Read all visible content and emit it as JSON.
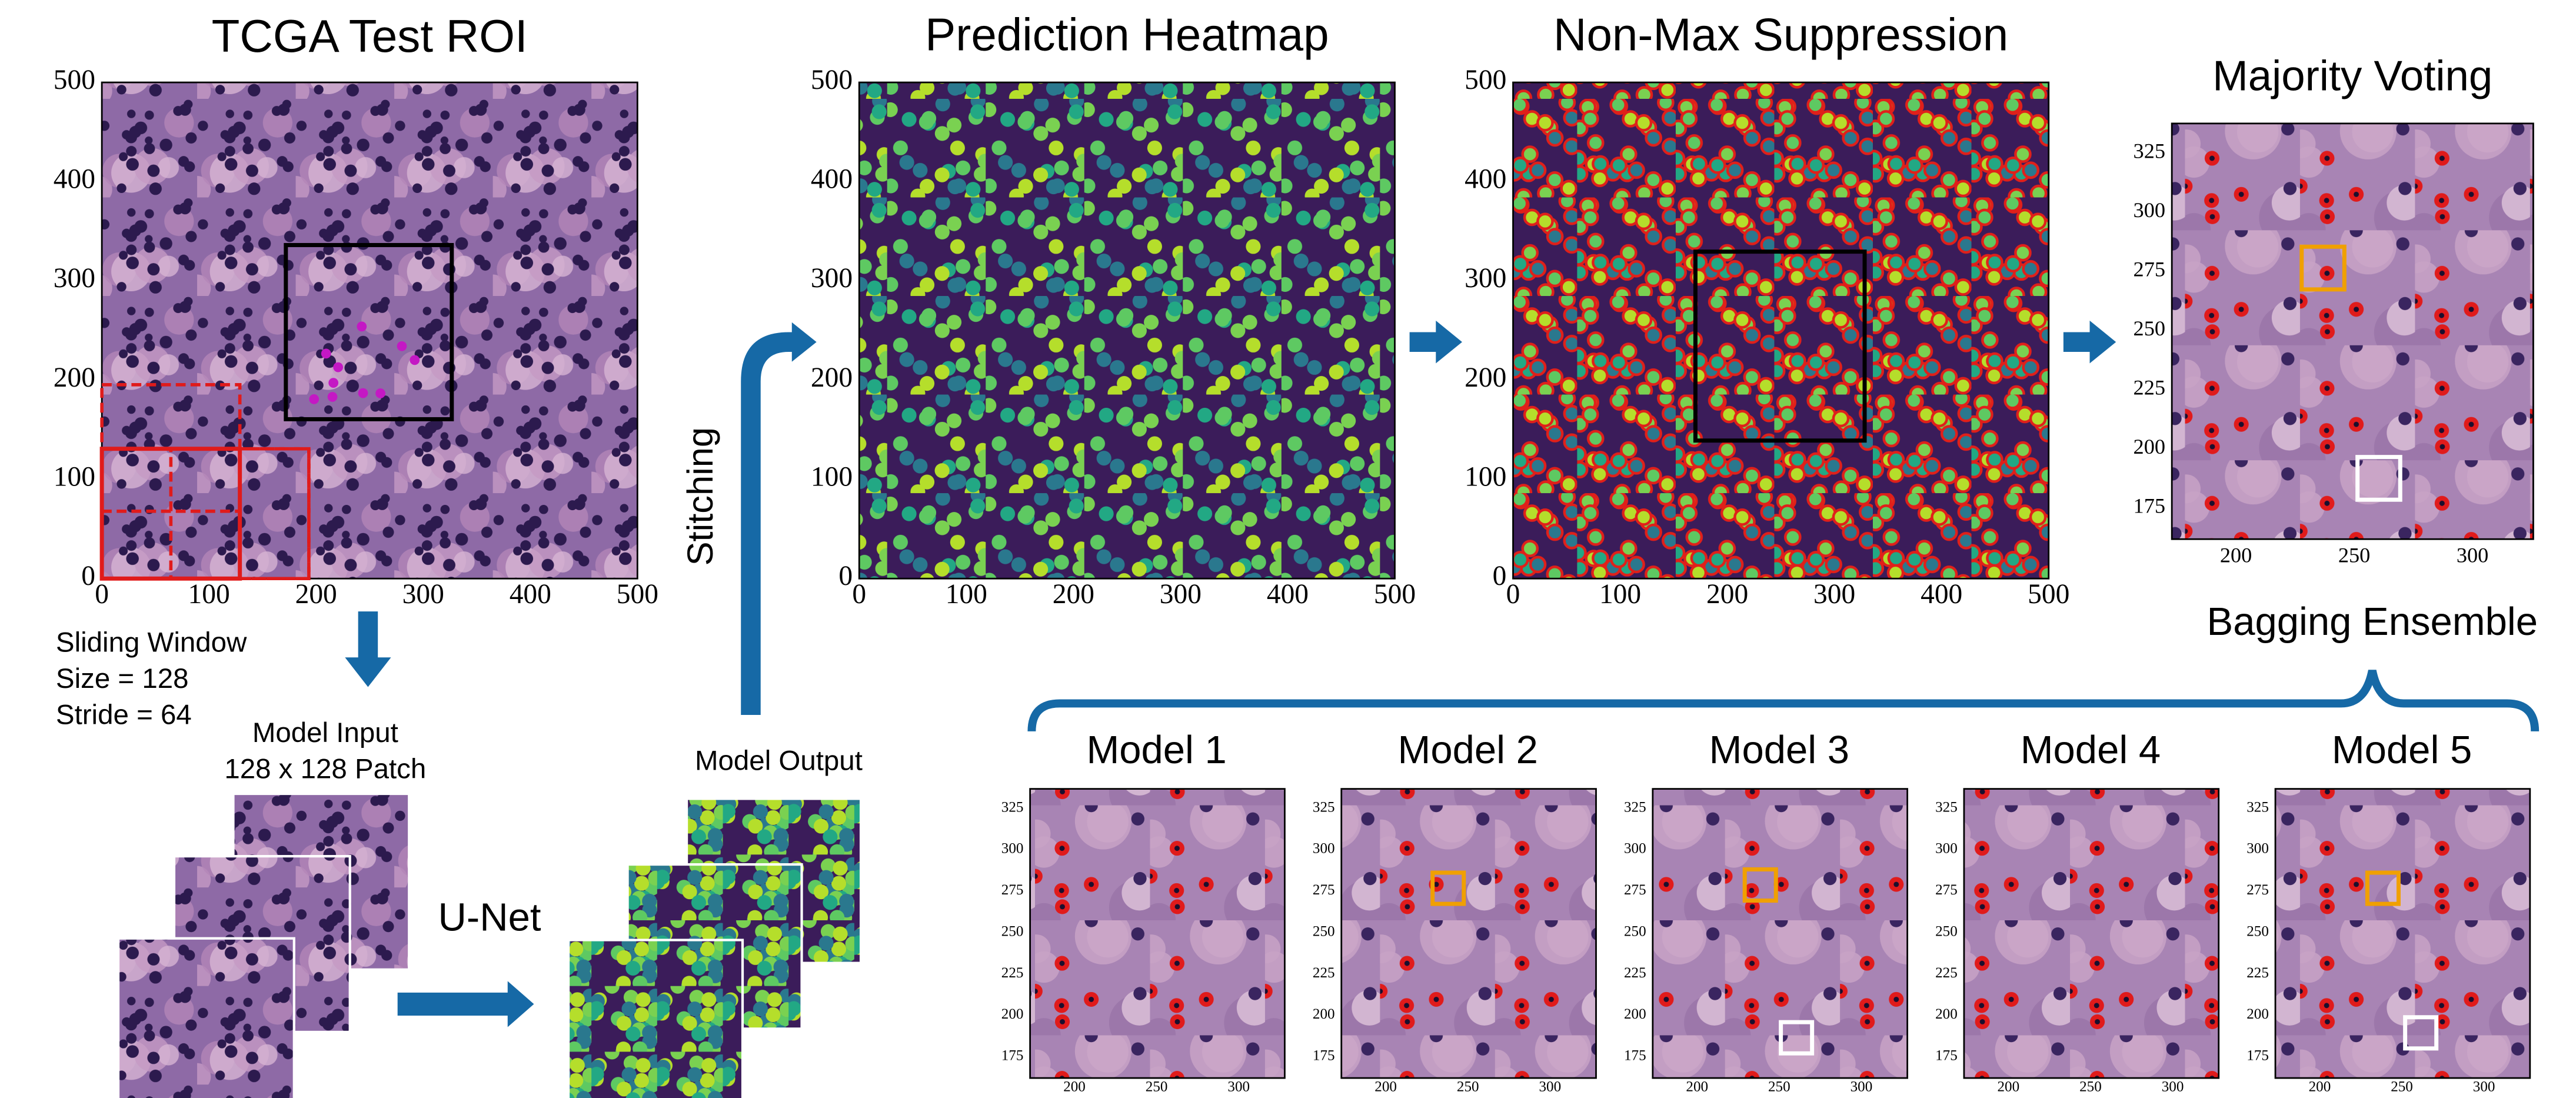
{
  "panels": {
    "roi": {
      "title": "TCGA Test ROI",
      "xticks": [
        0,
        100,
        200,
        300,
        400,
        500
      ],
      "yticks": [
        0,
        100,
        200,
        300,
        400,
        500
      ]
    },
    "heatmap": {
      "title": "Prediction Heatmap",
      "xticks": [
        0,
        100,
        200,
        300,
        400,
        500
      ],
      "yticks": [
        0,
        100,
        200,
        300,
        400,
        500
      ]
    },
    "nms": {
      "title": "Non-Max Suppression",
      "xticks": [
        0,
        100,
        200,
        300,
        400,
        500
      ],
      "yticks": [
        0,
        100,
        200,
        300,
        400,
        500
      ]
    },
    "voting": {
      "title": "Majority Voting",
      "xticks": [
        200,
        250,
        300
      ],
      "yticks": [
        175,
        200,
        225,
        250,
        275,
        300,
        325
      ]
    }
  },
  "labels": {
    "sliding_window": [
      "Sliding Window",
      "Size = 128",
      "Stride = 64"
    ],
    "model_input": [
      "Model Input",
      "128 x 128 Patch"
    ],
    "unet": "U-Net",
    "model_output": "Model Output",
    "stitching": "Stitching",
    "bagging": "Bagging Ensemble"
  },
  "models": {
    "titles": [
      "Model 1",
      "Model 2",
      "Model 3",
      "Model 4",
      "Model 5"
    ],
    "xticks": [
      200,
      250,
      300
    ],
    "yticks": [
      175,
      200,
      225,
      250,
      275,
      300,
      325
    ]
  }
}
